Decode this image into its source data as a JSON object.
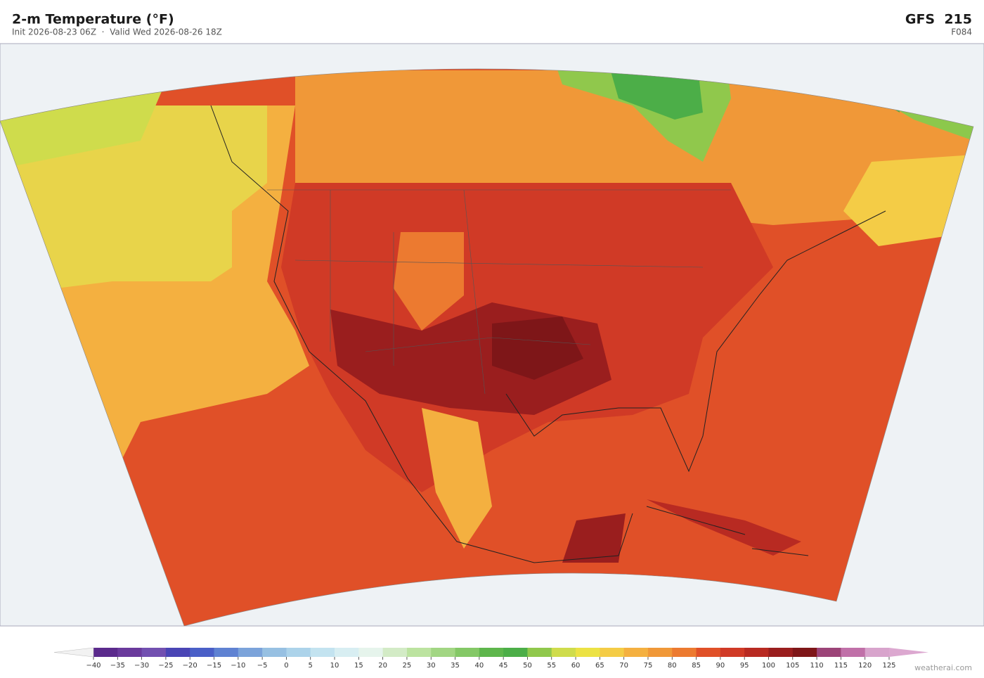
{
  "header": {
    "title": "2-m Temperature  (°F)",
    "subtitle": "Init 2026-08-23 06Z  ·  Valid Wed 2026-08-26 18Z",
    "model": "GFS  215",
    "forecast_hour": "F084"
  },
  "colorbar": {
    "ticks": [
      {
        "value": -40,
        "label": "−40"
      },
      {
        "value": -35,
        "label": "−35"
      },
      {
        "value": -30,
        "label": "−30"
      },
      {
        "value": -25,
        "label": "−25"
      },
      {
        "value": -20,
        "label": "−20"
      },
      {
        "value": -15,
        "label": "−15"
      },
      {
        "value": -10,
        "label": "−10"
      },
      {
        "value": -5,
        "label": "−5"
      },
      0,
      5,
      10,
      15,
      20,
      25,
      30,
      35,
      40,
      45,
      50,
      55,
      60,
      65,
      70,
      75,
      80,
      85,
      90,
      95,
      100,
      105,
      110,
      115,
      120,
      125
    ],
    "colors": [
      "#5b2a8c",
      "#6a3a9c",
      "#7250b0",
      "#4a45b5",
      "#4a5fc7",
      "#5f82d2",
      "#7ba3da",
      "#97c0e2",
      "#acd3ea",
      "#c3e3f0",
      "#d8eef2",
      "#e6f4ec",
      "#d3ebc6",
      "#bce3a0",
      "#a2d683",
      "#84c866",
      "#5eb64c",
      "#4cae48",
      "#90c84c",
      "#cfdc4c",
      "#ece244",
      "#f4cc46",
      "#f4b040",
      "#f09838",
      "#ec7a30",
      "#e05028",
      "#d03a26",
      "#b82a22",
      "#9a1e1e",
      "#7e1618",
      "#9c4478",
      "#c070a8",
      "#d8a4cc"
    ],
    "extend_colors": [
      "#f2f2f2",
      "#dca8d0"
    ]
  },
  "footer": {
    "credit": "weatherai.com"
  }
}
